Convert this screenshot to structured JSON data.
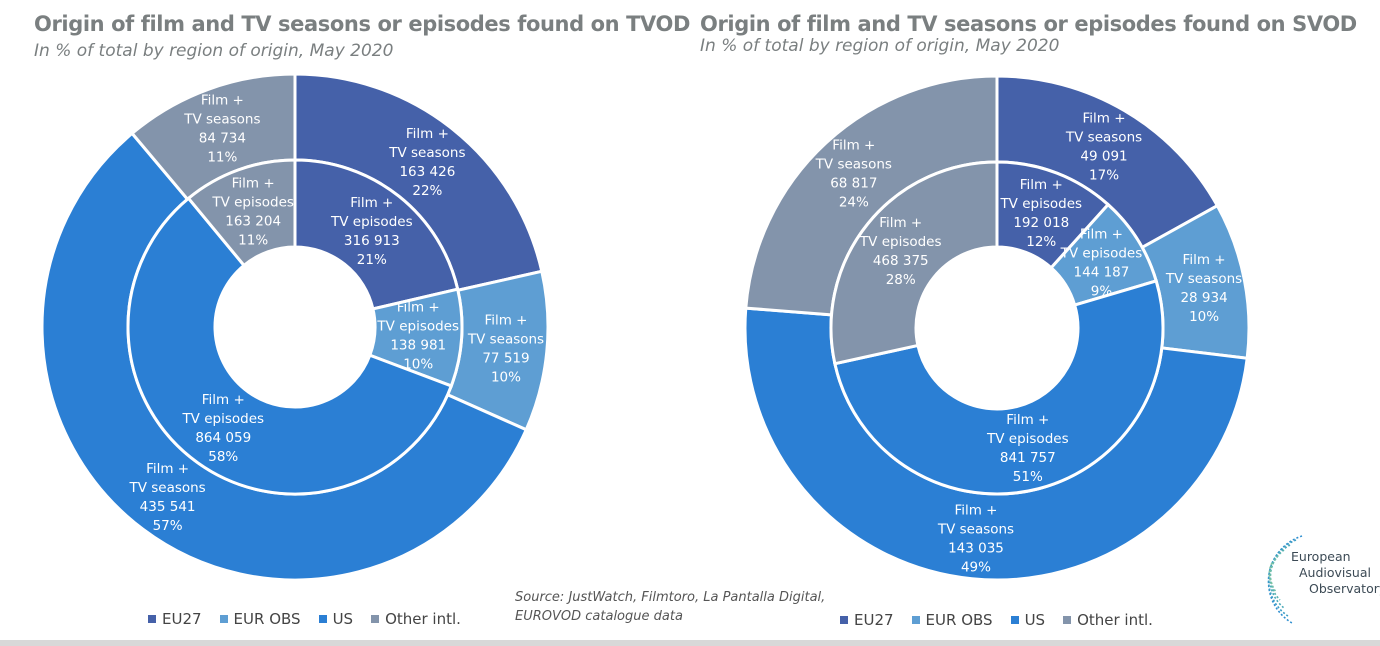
{
  "charts": [
    {
      "title": "Origin of film and TV seasons or episodes found on TVOD",
      "subtitle": "In % of total by region of origin, May 2020"
    },
    {
      "title": "Origin of film and TV seasons or episodes found on SVOD",
      "subtitle": "In % of total by region of origin, May 2020"
    }
  ],
  "legend": [
    {
      "name": "EU27",
      "color": "#4561a9"
    },
    {
      "name": "EUR OBS",
      "color": "#5e9ed3"
    },
    {
      "name": "US",
      "color": "#2b7fd4"
    },
    {
      "name": "Other intl.",
      "color": "#8394ab"
    }
  ],
  "source": {
    "line1": "Source: JustWatch, Filmtoro, La Pantalla Digital,",
    "line2": "EUROVOD catalogue data"
  },
  "logo": {
    "line1": "European",
    "line2": "Audiovisual",
    "line3": "Observatory"
  },
  "chart_data": [
    {
      "type": "pie",
      "subtype": "nested-donut",
      "title": "Origin of film and TV seasons or episodes found on TVOD",
      "subtitle": "In % of total by region of origin, May 2020",
      "categories": [
        "EU27",
        "EUR OBS",
        "US",
        "Other intl."
      ],
      "colors": [
        "#4561a9",
        "#5e9ed3",
        "#2b7fd4",
        "#8394ab"
      ],
      "legend_position": "bottom",
      "series": [
        {
          "name": "Film + TV seasons",
          "ring": "outer",
          "values": [
            163426,
            77519,
            435541,
            84734
          ],
          "labels": [
            "163 426",
            "77 519",
            "435 541",
            "84 734"
          ],
          "percents": [
            "22%",
            "10%",
            "57%",
            "11%"
          ]
        },
        {
          "name": "Film + TV episodes",
          "ring": "inner",
          "values": [
            316913,
            138981,
            864059,
            163204
          ],
          "labels": [
            "316 913",
            "138 981",
            "864 059",
            "163 204"
          ],
          "percents": [
            "21%",
            "10%",
            "58%",
            "11%"
          ]
        }
      ]
    },
    {
      "type": "pie",
      "subtype": "nested-donut",
      "title": "Origin of film and TV seasons or episodes found on SVOD",
      "subtitle": "In % of total by region of origin, May 2020",
      "categories": [
        "EU27",
        "EUR OBS",
        "US",
        "Other intl."
      ],
      "colors": [
        "#4561a9",
        "#5e9ed3",
        "#2b7fd4",
        "#8394ab"
      ],
      "legend_position": "bottom",
      "series": [
        {
          "name": "Film + TV seasons",
          "ring": "outer",
          "values": [
            49091,
            28934,
            143035,
            68817
          ],
          "labels": [
            "49 091",
            "28 934",
            "143 035",
            "68 817"
          ],
          "percents": [
            "17%",
            "10%",
            "49%",
            "24%"
          ]
        },
        {
          "name": "Film + TV episodes",
          "ring": "inner",
          "values": [
            192018,
            144187,
            841757,
            468375
          ],
          "labels": [
            "192 018",
            "144 187",
            "841 757",
            "468 375"
          ],
          "percents": [
            "12%",
            "9%",
            "51%",
            "28%"
          ]
        }
      ]
    }
  ]
}
